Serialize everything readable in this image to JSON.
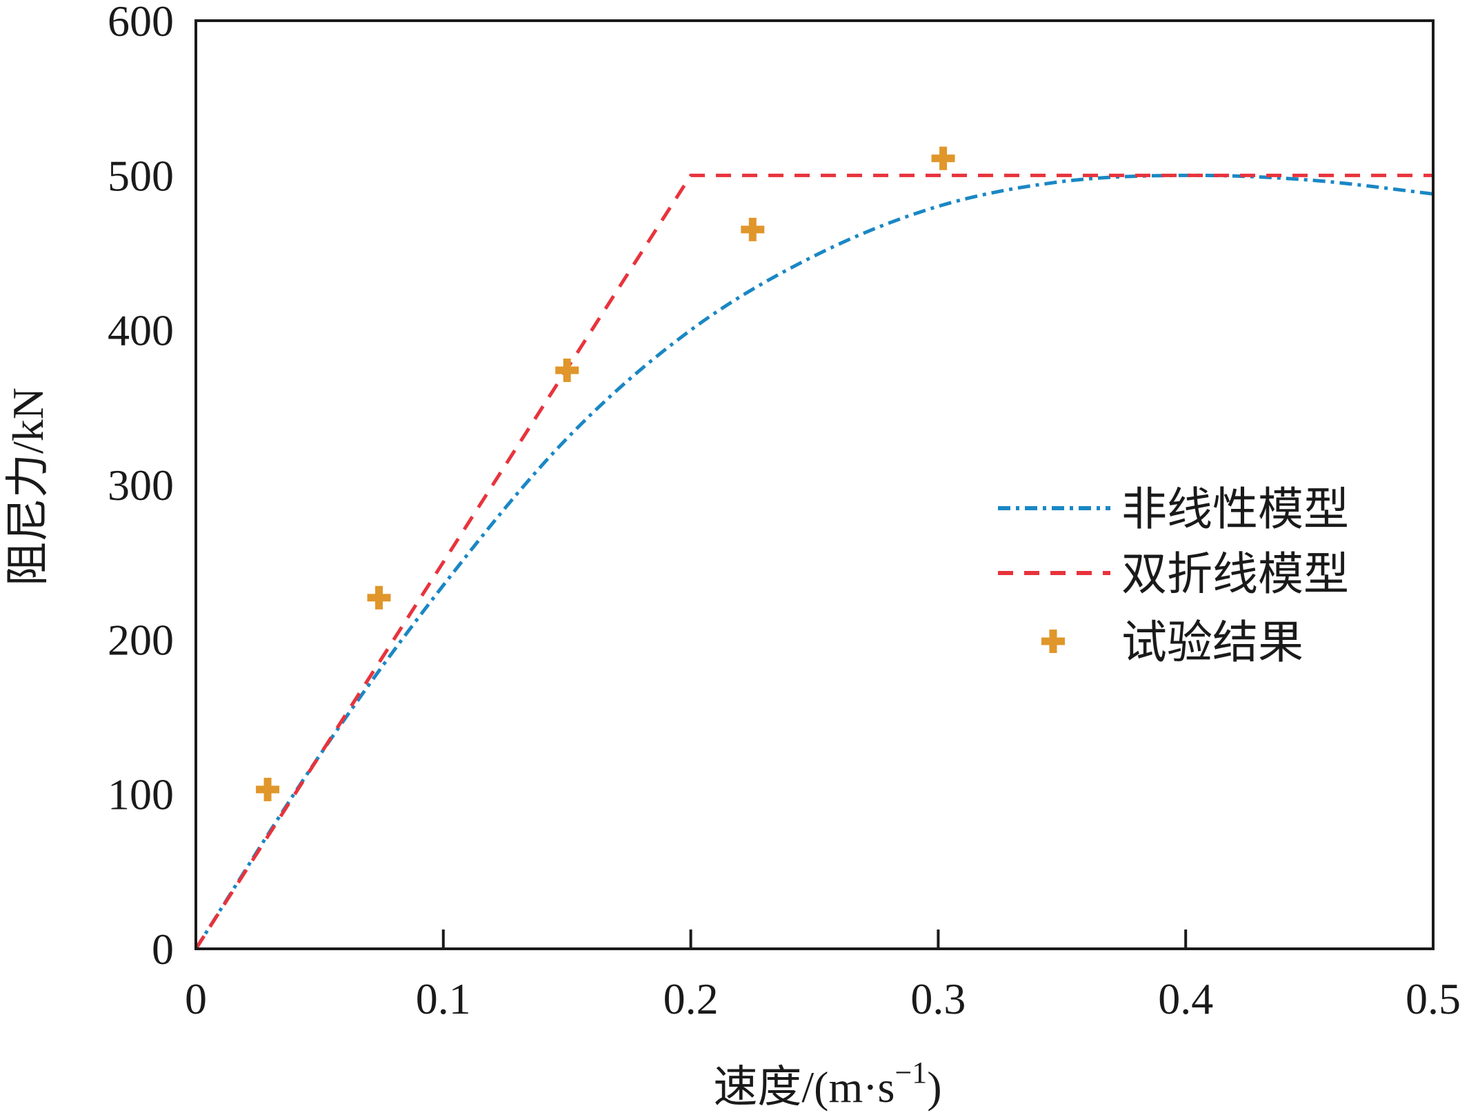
{
  "chart_data": {
    "type": "line",
    "title": "",
    "xlabel": "速度/(m·s",
    "xlabel_sup": "−1",
    "xlabel_close": ")",
    "ylabel": "阻尼力/kN",
    "xlim": [
      0,
      0.5
    ],
    "ylim": [
      0,
      600
    ],
    "x_ticks": [
      "0",
      "0.1",
      "0.2",
      "0.3",
      "0.4",
      "0.5"
    ],
    "y_ticks": [
      "0",
      "100",
      "200",
      "300",
      "400",
      "500",
      "600"
    ],
    "grid": false,
    "legend_position": "right",
    "series": [
      {
        "name": "非线性模型",
        "style": "dash-dot",
        "color": "#1a87c4",
        "x": [
          0,
          0.05,
          0.1,
          0.15,
          0.2,
          0.25,
          0.3,
          0.35,
          0.4,
          0.45,
          0.5
        ],
        "y": [
          0,
          125,
          235,
          330,
          400,
          448,
          480,
          496,
          500,
          497,
          488
        ]
      },
      {
        "name": "双折线模型",
        "style": "dashed",
        "color": "#e8333c",
        "x": [
          0,
          0.2,
          0.5
        ],
        "y": [
          0,
          500,
          500
        ]
      },
      {
        "name": "试验结果",
        "style": "plus-marker",
        "color": "#e0962a",
        "x": [
          0.029,
          0.074,
          0.15,
          0.225,
          0.302
        ],
        "y": [
          103,
          227,
          374,
          465,
          511
        ]
      }
    ]
  }
}
